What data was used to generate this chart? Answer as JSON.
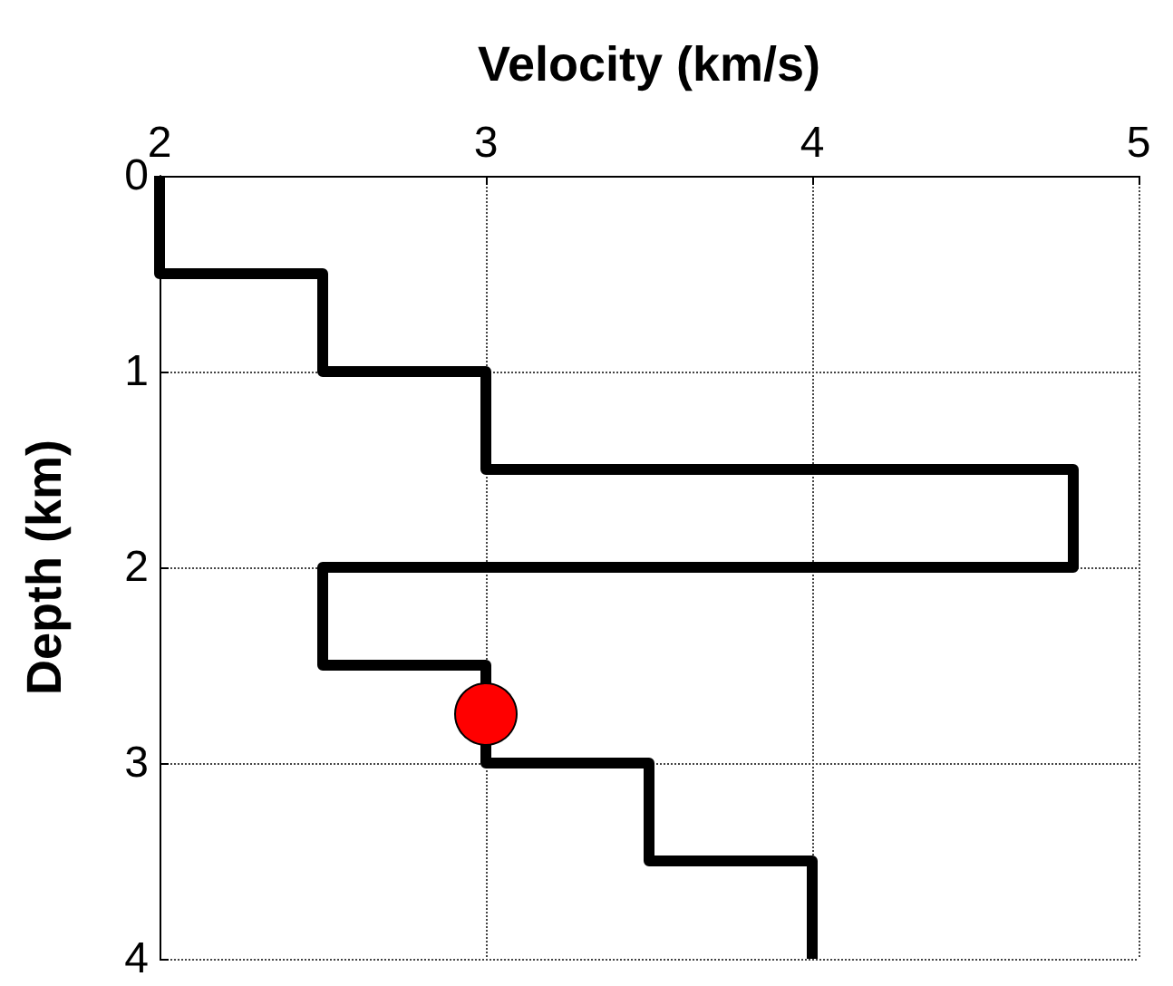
{
  "chart_data": {
    "type": "line",
    "xlabel": "Velocity (km/s)",
    "ylabel": "Depth (km)",
    "xlim": [
      2,
      5
    ],
    "xticks": [
      2,
      3,
      4,
      5
    ],
    "ylim": [
      4,
      0
    ],
    "yticks": [
      0,
      1,
      2,
      3,
      4
    ],
    "grid": true,
    "series": [
      {
        "color": "#000000",
        "marker": "none",
        "line_style": "solid",
        "x": [
          2,
          2,
          2.5,
          2.5,
          3,
          3,
          4.8,
          4.8,
          2.5,
          2.5,
          3,
          3,
          3.5,
          3.5,
          4,
          4
        ],
        "values": [
          0,
          0.5,
          0.5,
          1,
          1,
          1.5,
          1.5,
          2,
          2,
          2.5,
          2.5,
          3,
          3,
          3.5,
          3.5,
          4
        ]
      },
      {
        "type": "scatter",
        "color": "#ff0000",
        "marker": "circle",
        "x": [
          3
        ],
        "values": [
          2.75
        ]
      }
    ]
  }
}
